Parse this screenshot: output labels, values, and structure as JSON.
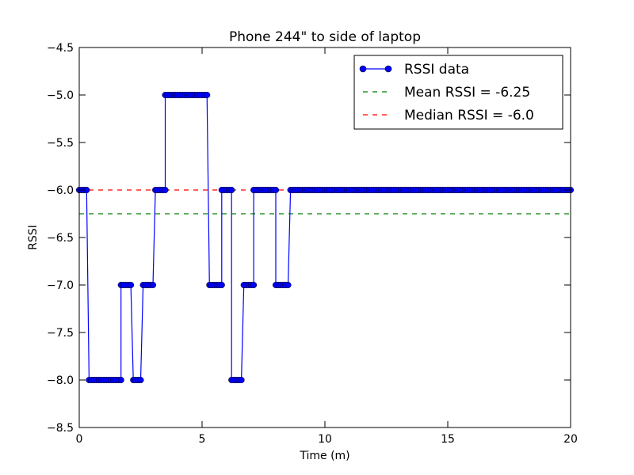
{
  "chart_data": {
    "type": "line",
    "title": "Phone 244\" to side of laptop",
    "xlabel": "Time (m)",
    "ylabel": "RSSI",
    "xlim": [
      0,
      20
    ],
    "ylim": [
      -8.5,
      -4.5
    ],
    "xticks": [
      0,
      5,
      10,
      15,
      20
    ],
    "xtick_labels": [
      "0",
      "5",
      "10",
      "15",
      "20"
    ],
    "yticks": [
      -4.5,
      -5.0,
      -5.5,
      -6.0,
      -6.5,
      -7.0,
      -7.5,
      -8.0,
      -8.5
    ],
    "ytick_labels": [
      "−4.5",
      "−5.0",
      "−5.5",
      "−6.0",
      "−6.5",
      "−7.0",
      "−7.5",
      "−8.0",
      "−8.5"
    ],
    "grid": false,
    "legend_position": "top-right",
    "series": [
      {
        "name": "RSSI data",
        "style": "line-with-circle-markers",
        "color": "#0000ff",
        "marker_color": "#0000ff",
        "segments": [
          {
            "x_start": 0.0,
            "x_end": 0.3,
            "y": -6.0
          },
          {
            "x_start": 0.4,
            "x_end": 1.7,
            "y": -8.0
          },
          {
            "x_start": 1.7,
            "x_end": 2.1,
            "y": -7.0
          },
          {
            "x_start": 2.2,
            "x_end": 2.5,
            "y": -8.0
          },
          {
            "x_start": 2.6,
            "x_end": 3.0,
            "y": -7.0
          },
          {
            "x_start": 3.1,
            "x_end": 3.5,
            "y": -6.0
          },
          {
            "x_start": 3.5,
            "x_end": 5.2,
            "y": -5.0
          },
          {
            "x_start": 5.3,
            "x_end": 5.8,
            "y": -7.0
          },
          {
            "x_start": 5.8,
            "x_end": 6.2,
            "y": -6.0
          },
          {
            "x_start": 6.2,
            "x_end": 6.6,
            "y": -8.0
          },
          {
            "x_start": 6.7,
            "x_end": 7.1,
            "y": -7.0
          },
          {
            "x_start": 7.1,
            "x_end": 8.0,
            "y": -6.0
          },
          {
            "x_start": 8.0,
            "x_end": 8.5,
            "y": -7.0
          },
          {
            "x_start": 8.6,
            "x_end": 20.0,
            "y": -6.0
          }
        ],
        "sample_step": 0.1
      },
      {
        "name": "Mean RSSI = -6.25",
        "style": "dashed",
        "color": "#008000",
        "y": -6.25
      },
      {
        "name": "Median RSSI = -6.0",
        "style": "dashed",
        "color": "#ff0000",
        "y": -6.0
      }
    ]
  }
}
